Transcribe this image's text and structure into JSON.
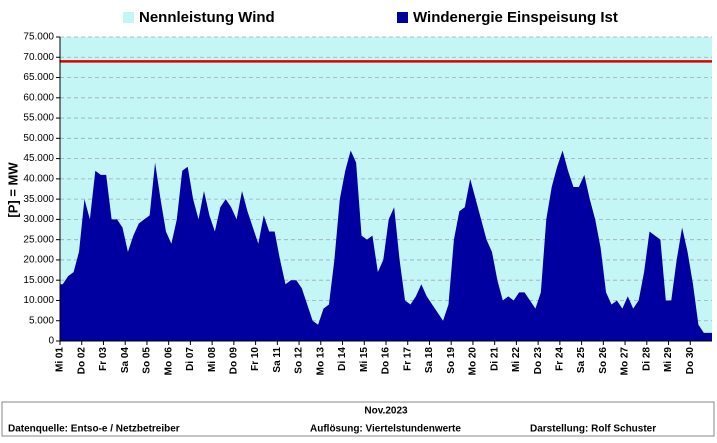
{
  "chart_data": {
    "type": "area",
    "ylabel": "[P] = MW",
    "xlabel": "Nov.2023",
    "footer": [
      "Datenquelle:  Entso-e  / Netzbetreiber",
      "Auflösung: Viertelstundenwerte",
      "Darstellung:  Rolf Schuster"
    ],
    "categories": [
      "Mi 01",
      null,
      null,
      null,
      "Do 02",
      null,
      null,
      null,
      "Fr 03",
      null,
      null,
      null,
      "Sa 04",
      null,
      null,
      null,
      "So 05",
      null,
      null,
      null,
      "Mo 06",
      null,
      null,
      null,
      "Di 07",
      null,
      null,
      null,
      "Mi 08",
      null,
      null,
      null,
      "Do 09",
      null,
      null,
      null,
      "Fr 10",
      null,
      null,
      null,
      "Sa 11",
      null,
      null,
      null,
      "So 12",
      null,
      null,
      null,
      "Mo 13",
      null,
      null,
      null,
      "Di 14",
      null,
      null,
      null,
      "Mi 15",
      null,
      null,
      null,
      "Do 16",
      null,
      null,
      null,
      "Fr 17",
      null,
      null,
      null,
      "Sa 18",
      null,
      null,
      null,
      "So 19",
      null,
      null,
      null,
      "Mo 20",
      null,
      null,
      null,
      "Di 21",
      null,
      null,
      null,
      "Mi 22",
      null,
      null,
      null,
      "Do 23",
      null,
      null,
      null,
      "Fr 24",
      null,
      null,
      null,
      "Sa 25",
      null,
      null,
      null,
      "So 26",
      null,
      null,
      null,
      "Mo 27",
      null,
      null,
      null,
      "Di 28",
      null,
      null,
      null,
      "Mi 29",
      null,
      null,
      null,
      "Do 30",
      null,
      null,
      null
    ],
    "series": [
      {
        "name": "Nennleistung Wind",
        "color": "#c4f6f6",
        "line_color": "#e00000",
        "values": [
          69000,
          69000,
          69000,
          69000,
          69000,
          69000,
          69000,
          69000,
          69000,
          69000,
          69000,
          69000,
          69000,
          69000,
          69000,
          69000,
          69000,
          69000,
          69000,
          69000,
          69000,
          69000,
          69000,
          69000,
          69000,
          69000,
          69000,
          69000,
          69000,
          69000,
          69000,
          69000,
          69000,
          69000,
          69000,
          69000,
          69000,
          69000,
          69000,
          69000,
          69000,
          69000,
          69000,
          69000,
          69000,
          69000,
          69000,
          69000,
          69000,
          69000,
          69000,
          69000,
          69000,
          69000,
          69000,
          69000,
          69000,
          69000,
          69000,
          69000,
          69000,
          69000,
          69000,
          69000,
          69000,
          69000,
          69000,
          69000,
          69000,
          69000,
          69000,
          69000,
          69000,
          69000,
          69000,
          69000,
          69000,
          69000,
          69000,
          69000,
          69000,
          69000,
          69000,
          69000,
          69000,
          69000,
          69000,
          69000,
          69000,
          69000,
          69000,
          69000,
          69000,
          69000,
          69000,
          69000,
          69000,
          69000,
          69000,
          69000,
          69000,
          69000,
          69000,
          69000,
          69000,
          69000,
          69000,
          69000,
          69000,
          69000,
          69000,
          69000,
          69000,
          69000,
          69000,
          69000,
          69000,
          69000,
          69000,
          69000
        ]
      },
      {
        "name": "Windenergie Einspeisung Ist",
        "color": "#0000a0",
        "values": [
          14000,
          16000,
          17000,
          22000,
          35000,
          30000,
          42000,
          41000,
          41000,
          30000,
          30000,
          28000,
          22000,
          26000,
          29000,
          30000,
          31000,
          44000,
          35000,
          27000,
          24000,
          30000,
          42000,
          43000,
          35000,
          30000,
          37000,
          31000,
          27000,
          33000,
          35000,
          33000,
          30000,
          37000,
          32000,
          28000,
          24000,
          31000,
          27000,
          27000,
          20000,
          14000,
          15000,
          15000,
          13000,
          9000,
          5000,
          4000,
          8000,
          9000,
          20000,
          35000,
          42000,
          47000,
          44000,
          26000,
          25000,
          26000,
          17000,
          20000,
          30000,
          33000,
          20000,
          10000,
          9000,
          11000,
          14000,
          11000,
          9000,
          7000,
          5000,
          9000,
          25000,
          32000,
          33000,
          40000,
          35000,
          30000,
          25000,
          22000,
          15000,
          10000,
          11000,
          10000,
          12000,
          12000,
          10000,
          8000,
          12000,
          30000,
          38000,
          43000,
          47000,
          42000,
          38000,
          38000,
          41000,
          35000,
          30000,
          23000,
          12000,
          9000,
          10000,
          8000,
          11000,
          8000,
          10000,
          17000,
          27000,
          26000,
          25000,
          10000,
          10000,
          20000,
          28000,
          22000,
          14000,
          4000,
          2000,
          2000
        ]
      }
    ],
    "ylim": [
      0,
      75000
    ],
    "yticks": [
      0,
      {
        "value": 5000,
        "label": "5.000"
      },
      {
        "value": 10000,
        "label": "10.000"
      },
      {
        "value": 15000,
        "label": "15.000"
      },
      {
        "value": 20000,
        "label": "20.000"
      },
      {
        "value": 25000,
        "label": "25.000"
      },
      {
        "value": 30000,
        "label": "30.000"
      },
      {
        "value": 35000,
        "label": "35.000"
      },
      {
        "value": 40000,
        "label": "40.000"
      },
      {
        "value": 45000,
        "label": "45.000"
      },
      {
        "value": 50000,
        "label": "50.000"
      },
      {
        "value": 55000,
        "label": "55.000"
      },
      {
        "value": 60000,
        "label": "60.000"
      },
      {
        "value": 65000,
        "label": "65.000"
      },
      {
        "value": 70000,
        "label": "70.000"
      },
      {
        "value": 75000,
        "label": "75.000"
      }
    ],
    "grid": true
  }
}
